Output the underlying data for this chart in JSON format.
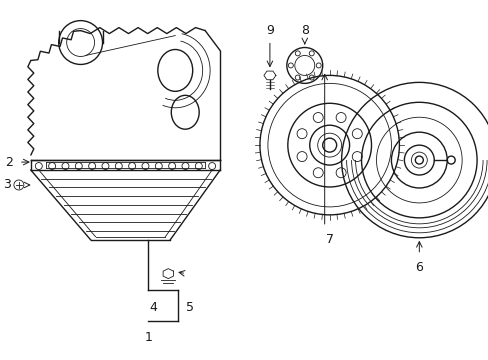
{
  "background_color": "#ffffff",
  "line_color": "#1a1a1a",
  "lw": 1.0,
  "tlw": 0.6
}
